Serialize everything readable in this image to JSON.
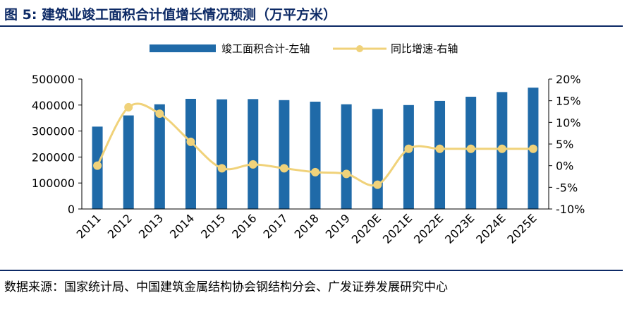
{
  "figure": {
    "title": "图 5:  建筑业竣工面积合计值增长情况预测（万平方米）",
    "source": "数据来源：国家统计局、中国建筑金属结构协会钢结构分会、广发证券发展研究中心"
  },
  "colors": {
    "bar": "#1f6aa8",
    "line": "#f0d27a",
    "title": "#0d2a66"
  },
  "chart_data": {
    "type": "bar",
    "categories": [
      "2011",
      "2012",
      "2013",
      "2014",
      "2015",
      "2016",
      "2017",
      "2018",
      "2019",
      "2020E",
      "2021E",
      "2022E",
      "2023E",
      "2024E",
      "2025E"
    ],
    "series": [
      {
        "name": "竣工面积合计-左轴",
        "type": "bar",
        "axis": "left",
        "values": [
          317000,
          360000,
          403000,
          424000,
          422000,
          423000,
          419000,
          413000,
          403000,
          385000,
          400000,
          416000,
          432000,
          450000,
          467000
        ]
      },
      {
        "name": "同比增速-右轴",
        "type": "line",
        "axis": "right",
        "values": [
          0.0,
          13.5,
          12.0,
          5.5,
          -0.6,
          0.3,
          -0.6,
          -1.5,
          -1.9,
          -4.4,
          3.9,
          3.9,
          3.9,
          3.9,
          3.9
        ]
      }
    ],
    "y_left": {
      "min": 0,
      "max": 500000,
      "ticks": [
        "0",
        "100000",
        "200000",
        "300000",
        "400000",
        "500000"
      ]
    },
    "y_right": {
      "min": -10,
      "max": 20,
      "ticks": [
        "-10%",
        "-5%",
        "0%",
        "5%",
        "10%",
        "15%",
        "20%"
      ]
    },
    "legend_position": "top-center",
    "grid": false
  }
}
